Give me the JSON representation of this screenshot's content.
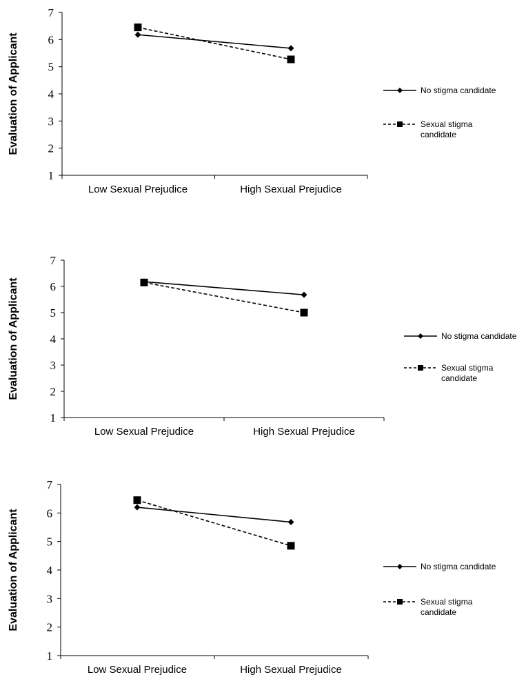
{
  "chart_data": [
    {
      "type": "line",
      "categories": [
        "Low Sexual Prejudice",
        "High Sexual Prejudice"
      ],
      "ylabel": "Evaluation of Applicant",
      "ylim": [
        1,
        7
      ],
      "yticks": [
        1,
        2,
        3,
        4,
        5,
        6,
        7
      ],
      "grid": false,
      "legend": "right",
      "series": [
        {
          "name": "No stigma candidate",
          "values": [
            6.18,
            5.68
          ],
          "marker": "diamond",
          "line": "solid",
          "color": "#000000"
        },
        {
          "name": "Sexual stigma candidate",
          "values": [
            6.45,
            5.27
          ],
          "marker": "square",
          "line": "dashed",
          "color": "#000000"
        }
      ]
    },
    {
      "type": "line",
      "categories": [
        "Low Sexual Prejudice",
        "High Sexual Prejudice"
      ],
      "ylabel": "Evaluation of Applicant",
      "ylim": [
        1,
        7
      ],
      "yticks": [
        1,
        2,
        3,
        4,
        5,
        6,
        7
      ],
      "grid": false,
      "legend": "right",
      "series": [
        {
          "name": "No stigma candidate",
          "values": [
            6.18,
            5.68
          ],
          "marker": "diamond",
          "line": "solid",
          "color": "#000000"
        },
        {
          "name": "Sexual stigma candidate",
          "values": [
            6.15,
            5.0
          ],
          "marker": "square",
          "line": "dashed",
          "color": "#000000"
        }
      ]
    },
    {
      "type": "line",
      "categories": [
        "Low Sexual Prejudice",
        "High Sexual Prejudice"
      ],
      "ylabel": "Evaluation of Applicant",
      "ylim": [
        1,
        7
      ],
      "yticks": [
        1,
        2,
        3,
        4,
        5,
        6,
        7
      ],
      "grid": false,
      "legend": "right",
      "series": [
        {
          "name": "No stigma candidate",
          "values": [
            6.2,
            5.68
          ],
          "marker": "diamond",
          "line": "solid",
          "color": "#000000"
        },
        {
          "name": "Sexual stigma candidate",
          "values": [
            6.45,
            4.85
          ],
          "marker": "square",
          "line": "dashed",
          "color": "#000000"
        }
      ]
    }
  ]
}
